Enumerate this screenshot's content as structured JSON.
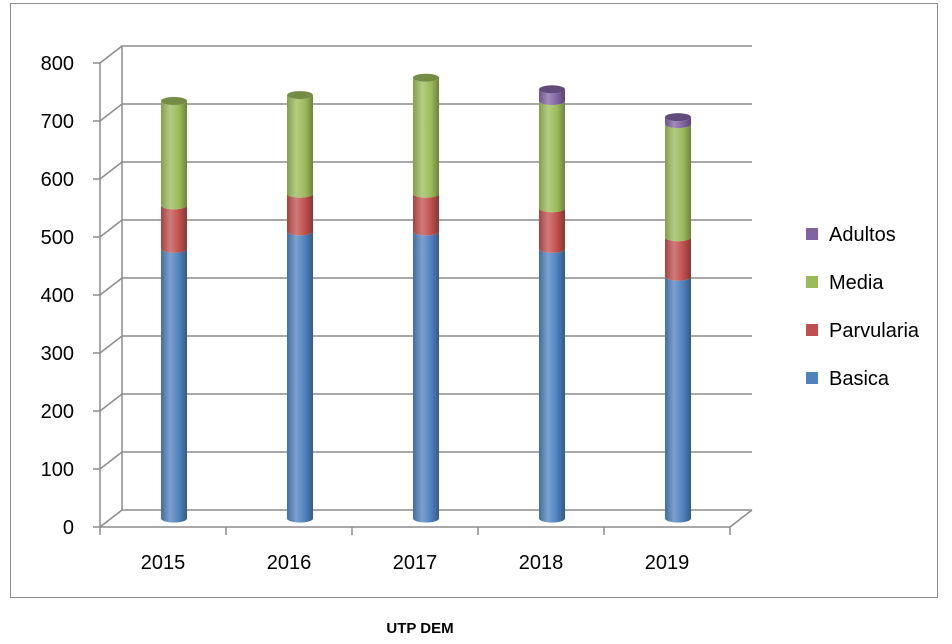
{
  "caption": "UTP DEM",
  "chart_data": {
    "type": "bar",
    "stacked": true,
    "categories": [
      "2015",
      "2016",
      "2017",
      "2018",
      "2019"
    ],
    "series": [
      {
        "name": "Basica",
        "color": "#4F81BD",
        "values": [
          465,
          495,
          495,
          465,
          417
        ]
      },
      {
        "name": "Parvularia",
        "color": "#C0504D",
        "values": [
          75,
          65,
          65,
          70,
          68
        ]
      },
      {
        "name": "Media",
        "color": "#9BBB59",
        "values": [
          180,
          170,
          200,
          185,
          195
        ]
      },
      {
        "name": "Adultos",
        "color": "#8064A2",
        "values": [
          0,
          0,
          0,
          20,
          12
        ]
      }
    ],
    "yticks": [
      0,
      100,
      200,
      300,
      400,
      500,
      600,
      700,
      800
    ],
    "ylim": [
      0,
      800
    ],
    "grid": true,
    "legend_position": "right",
    "title": "",
    "xlabel": "",
    "ylabel": ""
  }
}
